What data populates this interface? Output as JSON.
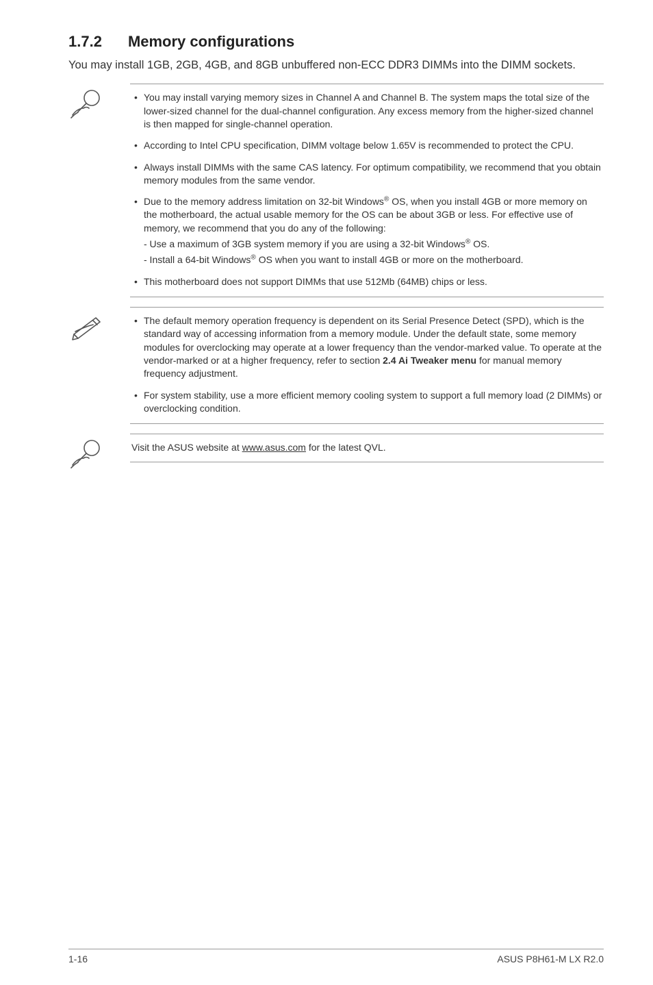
{
  "heading": {
    "number": "1.7.2",
    "title": "Memory configurations"
  },
  "intro": "You may install 1GB, 2GB, 4GB, and 8GB unbuffered non-ECC DDR3 DIMMs into the DIMM sockets.",
  "block1": {
    "items": [
      {
        "text": "You may install varying memory sizes in Channel A and Channel B. The system maps the total size of the lower-sized channel for the dual-channel configuration. Any excess memory from the higher-sized channel is then mapped for single-channel operation."
      },
      {
        "text": "According to Intel CPU specification, DIMM voltage below 1.65V is recommended to protect the CPU."
      },
      {
        "text": "Always install DIMMs with the same CAS latency. For optimum compatibility, we recommend that you obtain memory modules from the same vendor."
      },
      {
        "html": "Due to the memory address limitation on 32-bit Windows<sup>®</sup> OS, when you install 4GB or more memory on the motherboard, the actual usable memory for the OS can be about 3GB or less. For effective use of memory, we recommend that you do any of the following:<span class=\"sub-line\">- Use a maximum of 3GB system memory if you are using a 32-bit Windows<sup>®</sup> OS.</span><span class=\"sub-line\">- Install a 64-bit Windows<sup>®</sup> OS when you want to install 4GB or more on the motherboard.</span>"
      },
      {
        "text": "This motherboard does not support DIMMs that use 512Mb (64MB) chips or less."
      }
    ]
  },
  "block2": {
    "items": [
      {
        "html": "The default memory operation frequency is dependent on its Serial Presence Detect (SPD), which is the standard way of accessing information from a memory module. Under the default state, some memory modules for overclocking may operate at a lower frequency than the vendor-marked value. To operate at the vendor-marked or at a higher frequency, refer to section <b>2.4 Ai Tweaker menu</b> for manual memory frequency adjustment."
      },
      {
        "text": "For system stability, use a more efficient memory cooling system to support a full memory load (2 DIMMs) or overclocking condition."
      }
    ]
  },
  "block3": {
    "html": "Visit the ASUS website at <a class=\"qvl\" href=\"#\">www.asus.com</a> for the latest QVL."
  },
  "footer": {
    "left": "1-16",
    "right": "ASUS P8H61-M LX R2.0"
  },
  "colors": {
    "rule": "#9a9a9a",
    "text": "#333333"
  }
}
